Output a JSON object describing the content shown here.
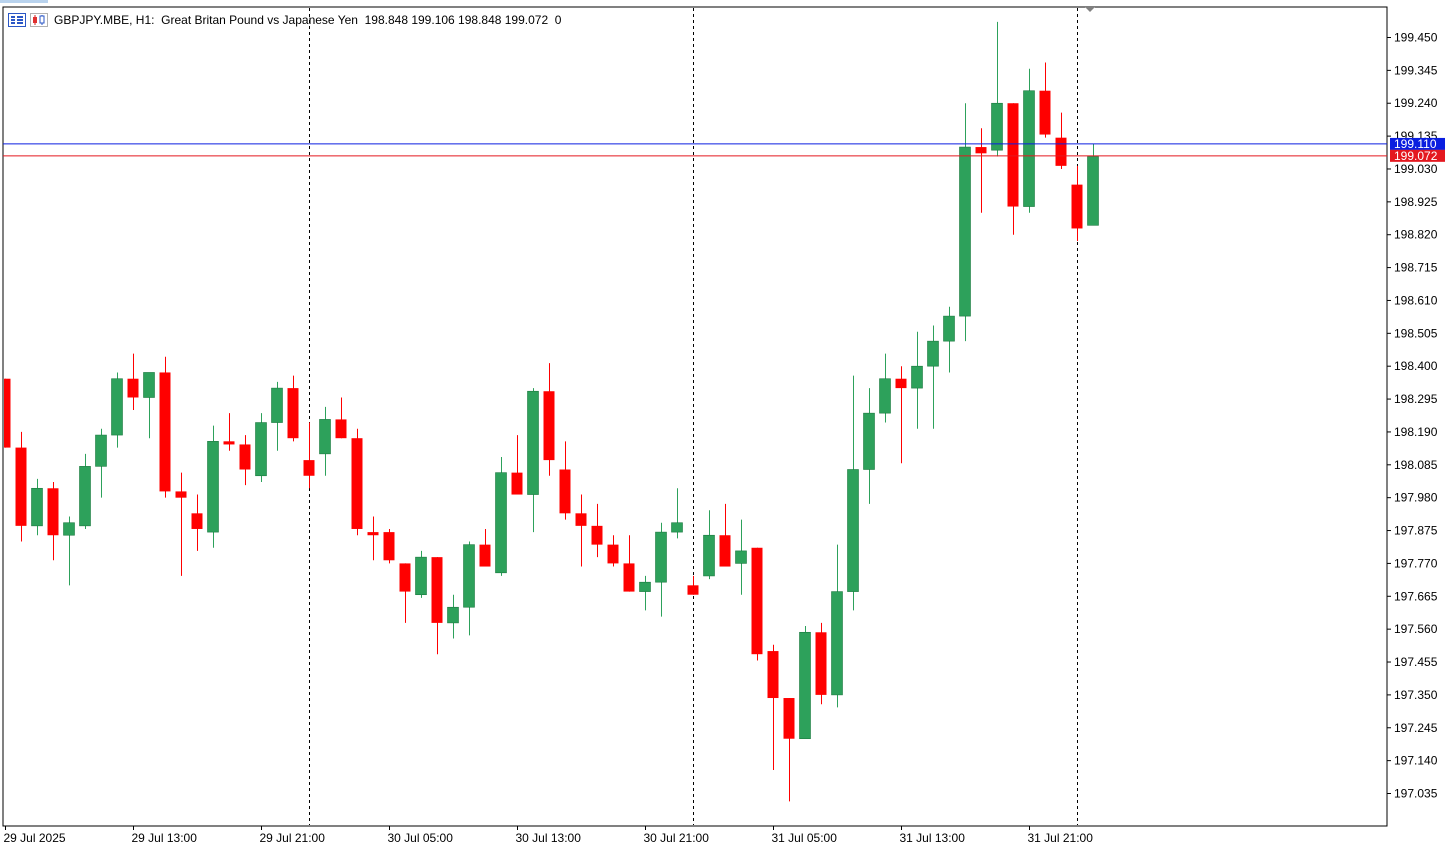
{
  "header": {
    "text": "GBPJPY.MBE, H1:  Great Britan Pound vs Japanese Yen  198.848 199.106 198.848 199.072  0"
  },
  "lines": {
    "bid_price": "199.072",
    "ask_price": "199.110",
    "bid_color": "#e4181f",
    "ask_color": "#0a1ee0"
  },
  "colors": {
    "bull": "#2da15b",
    "bear": "#ff0000",
    "grid": "#000000"
  },
  "chart_data": {
    "type": "candlestick",
    "symbol": "GBPJPY.MBE",
    "timeframe": "H1",
    "ylim": [
      196.95,
      199.58
    ],
    "y_ticks": [
      "199.450",
      "199.345",
      "199.240",
      "199.135",
      "199.030",
      "198.925",
      "198.820",
      "198.715",
      "198.610",
      "198.505",
      "198.400",
      "198.295",
      "198.190",
      "198.085",
      "197.980",
      "197.875",
      "197.770",
      "197.665",
      "197.560",
      "197.455",
      "197.350",
      "197.245",
      "197.140",
      "197.035"
    ],
    "x_ticks": [
      "29 Jul 2025",
      "29 Jul 13:00",
      "29 Jul 21:00",
      "30 Jul 05:00",
      "30 Jul 13:00",
      "30 Jul 21:00",
      "31 Jul 05:00",
      "31 Jul 13:00",
      "31 Jul 21:00"
    ],
    "x_tick_bar_index": [
      0,
      8,
      16,
      24,
      32,
      40,
      48,
      56,
      64
    ],
    "day_separator_bar_index": [
      19,
      43,
      67
    ],
    "candles": [
      {
        "o": 198.36,
        "h": 198.36,
        "l": 198.14,
        "c": 198.14
      },
      {
        "o": 198.14,
        "h": 198.19,
        "l": 197.84,
        "c": 197.89
      },
      {
        "o": 197.89,
        "h": 198.04,
        "l": 197.86,
        "c": 198.01
      },
      {
        "o": 198.01,
        "h": 198.03,
        "l": 197.78,
        "c": 197.86
      },
      {
        "o": 197.86,
        "h": 197.92,
        "l": 197.7,
        "c": 197.9
      },
      {
        "o": 197.89,
        "h": 198.12,
        "l": 197.88,
        "c": 198.08
      },
      {
        "o": 198.08,
        "h": 198.2,
        "l": 197.98,
        "c": 198.18
      },
      {
        "o": 198.18,
        "h": 198.38,
        "l": 198.14,
        "c": 198.36
      },
      {
        "o": 198.36,
        "h": 198.44,
        "l": 198.26,
        "c": 198.3
      },
      {
        "o": 198.3,
        "h": 198.38,
        "l": 198.17,
        "c": 198.38
      },
      {
        "o": 198.38,
        "h": 198.43,
        "l": 197.98,
        "c": 198.0
      },
      {
        "o": 198.0,
        "h": 198.06,
        "l": 197.73,
        "c": 197.98
      },
      {
        "o": 197.93,
        "h": 197.99,
        "l": 197.81,
        "c": 197.88
      },
      {
        "o": 197.87,
        "h": 198.21,
        "l": 197.82,
        "c": 198.16
      },
      {
        "o": 198.16,
        "h": 198.25,
        "l": 198.13,
        "c": 198.15
      },
      {
        "o": 198.15,
        "h": 198.18,
        "l": 198.02,
        "c": 198.07
      },
      {
        "o": 198.05,
        "h": 198.25,
        "l": 198.03,
        "c": 198.22
      },
      {
        "o": 198.22,
        "h": 198.35,
        "l": 198.13,
        "c": 198.33
      },
      {
        "o": 198.33,
        "h": 198.37,
        "l": 198.16,
        "c": 198.17
      },
      {
        "o": 198.1,
        "h": 198.22,
        "l": 198.01,
        "c": 198.05
      },
      {
        "o": 198.12,
        "h": 198.27,
        "l": 198.05,
        "c": 198.23
      },
      {
        "o": 198.23,
        "h": 198.3,
        "l": 198.17,
        "c": 198.17
      },
      {
        "o": 198.17,
        "h": 198.2,
        "l": 197.86,
        "c": 197.88
      },
      {
        "o": 197.87,
        "h": 197.92,
        "l": 197.78,
        "c": 197.86
      },
      {
        "o": 197.87,
        "h": 197.88,
        "l": 197.77,
        "c": 197.78
      },
      {
        "o": 197.77,
        "h": 197.77,
        "l": 197.58,
        "c": 197.68
      },
      {
        "o": 197.67,
        "h": 197.81,
        "l": 197.66,
        "c": 197.79
      },
      {
        "o": 197.79,
        "h": 197.79,
        "l": 197.48,
        "c": 197.58
      },
      {
        "o": 197.58,
        "h": 197.67,
        "l": 197.53,
        "c": 197.63
      },
      {
        "o": 197.63,
        "h": 197.84,
        "l": 197.54,
        "c": 197.83
      },
      {
        "o": 197.83,
        "h": 197.88,
        "l": 197.76,
        "c": 197.76
      },
      {
        "o": 197.74,
        "h": 198.11,
        "l": 197.73,
        "c": 198.06
      },
      {
        "o": 198.06,
        "h": 198.18,
        "l": 197.99,
        "c": 197.99
      },
      {
        "o": 197.99,
        "h": 198.33,
        "l": 197.87,
        "c": 198.32
      },
      {
        "o": 198.32,
        "h": 198.41,
        "l": 198.05,
        "c": 198.1
      },
      {
        "o": 198.07,
        "h": 198.16,
        "l": 197.91,
        "c": 197.93
      },
      {
        "o": 197.93,
        "h": 197.99,
        "l": 197.76,
        "c": 197.89
      },
      {
        "o": 197.89,
        "h": 197.96,
        "l": 197.79,
        "c": 197.83
      },
      {
        "o": 197.83,
        "h": 197.86,
        "l": 197.76,
        "c": 197.77
      },
      {
        "o": 197.77,
        "h": 197.86,
        "l": 197.68,
        "c": 197.68
      },
      {
        "o": 197.68,
        "h": 197.73,
        "l": 197.62,
        "c": 197.71
      },
      {
        "o": 197.71,
        "h": 197.9,
        "l": 197.6,
        "c": 197.87
      },
      {
        "o": 197.87,
        "h": 198.01,
        "l": 197.85,
        "c": 197.9
      },
      {
        "o": 197.7,
        "h": 197.73,
        "l": 197.67,
        "c": 197.67
      },
      {
        "o": 197.73,
        "h": 197.94,
        "l": 197.72,
        "c": 197.86
      },
      {
        "o": 197.86,
        "h": 197.96,
        "l": 197.76,
        "c": 197.76
      },
      {
        "o": 197.77,
        "h": 197.91,
        "l": 197.67,
        "c": 197.81
      },
      {
        "o": 197.82,
        "h": 197.82,
        "l": 197.46,
        "c": 197.48
      },
      {
        "o": 197.49,
        "h": 197.51,
        "l": 197.11,
        "c": 197.34
      },
      {
        "o": 197.34,
        "h": 197.34,
        "l": 197.01,
        "c": 197.21
      },
      {
        "o": 197.21,
        "h": 197.57,
        "l": 197.21,
        "c": 197.55
      },
      {
        "o": 197.55,
        "h": 197.58,
        "l": 197.32,
        "c": 197.35
      },
      {
        "o": 197.35,
        "h": 197.83,
        "l": 197.31,
        "c": 197.68
      },
      {
        "o": 197.68,
        "h": 198.37,
        "l": 197.62,
        "c": 198.07
      },
      {
        "o": 198.07,
        "h": 198.33,
        "l": 197.96,
        "c": 198.25
      },
      {
        "o": 198.25,
        "h": 198.44,
        "l": 198.22,
        "c": 198.36
      },
      {
        "o": 198.36,
        "h": 198.4,
        "l": 198.09,
        "c": 198.33
      },
      {
        "o": 198.33,
        "h": 198.51,
        "l": 198.2,
        "c": 198.4
      },
      {
        "o": 198.4,
        "h": 198.53,
        "l": 198.2,
        "c": 198.48
      },
      {
        "o": 198.48,
        "h": 198.59,
        "l": 198.38,
        "c": 198.56
      },
      {
        "o": 198.56,
        "h": 199.24,
        "l": 198.48,
        "c": 199.1
      },
      {
        "o": 199.1,
        "h": 199.16,
        "l": 198.89,
        "c": 199.08
      },
      {
        "o": 199.09,
        "h": 199.5,
        "l": 199.07,
        "c": 199.24
      },
      {
        "o": 199.24,
        "h": 199.24,
        "l": 198.82,
        "c": 198.91
      },
      {
        "o": 198.91,
        "h": 199.35,
        "l": 198.89,
        "c": 199.28
      },
      {
        "o": 199.28,
        "h": 199.37,
        "l": 199.13,
        "c": 199.14
      },
      {
        "o": 199.13,
        "h": 199.21,
        "l": 199.03,
        "c": 199.04
      },
      {
        "o": 198.98,
        "h": 199.04,
        "l": 198.8,
        "c": 198.84
      },
      {
        "o": 198.85,
        "h": 199.11,
        "l": 198.85,
        "c": 199.07
      }
    ]
  }
}
